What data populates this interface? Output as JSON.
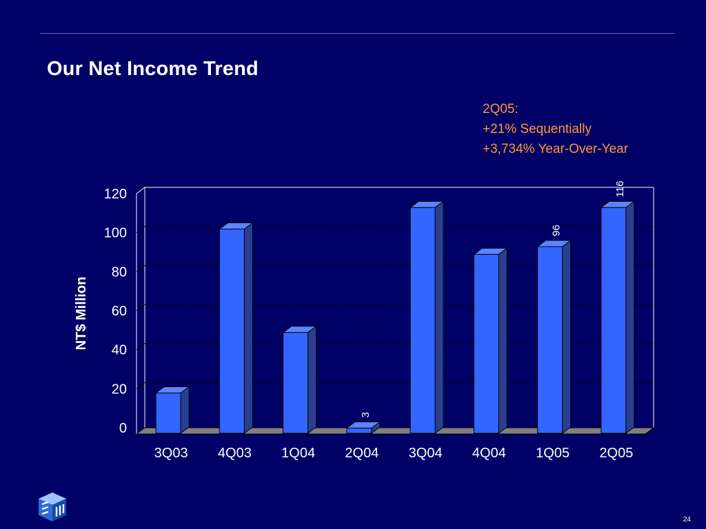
{
  "slide": {
    "title": "Our Net Income Trend",
    "annotation_lines": [
      "2Q05:",
      "+21% Sequentially",
      "+3,734% Year-Over-Year"
    ],
    "page_number": "24",
    "accent_color": "#ff9933",
    "background_color": "#000066",
    "logo_icon": "smic-cube-logo-icon"
  },
  "chart_data": {
    "type": "bar",
    "style": "3d",
    "ylabel": "NT$ Million",
    "ylim": [
      0,
      120
    ],
    "yticks": [
      0,
      20,
      40,
      60,
      80,
      100,
      120
    ],
    "grid": true,
    "categories": [
      "3Q03",
      "4Q03",
      "1Q04",
      "2Q04",
      "3Q04",
      "4Q04",
      "1Q05",
      "2Q05"
    ],
    "values": [
      21,
      105,
      52,
      3,
      116,
      92,
      96,
      116
    ],
    "data_labels": {
      "3": "3",
      "6": "96",
      "7": "116"
    },
    "bar_color": "#3366ff",
    "bar_side_color": "#2a3f8f"
  }
}
